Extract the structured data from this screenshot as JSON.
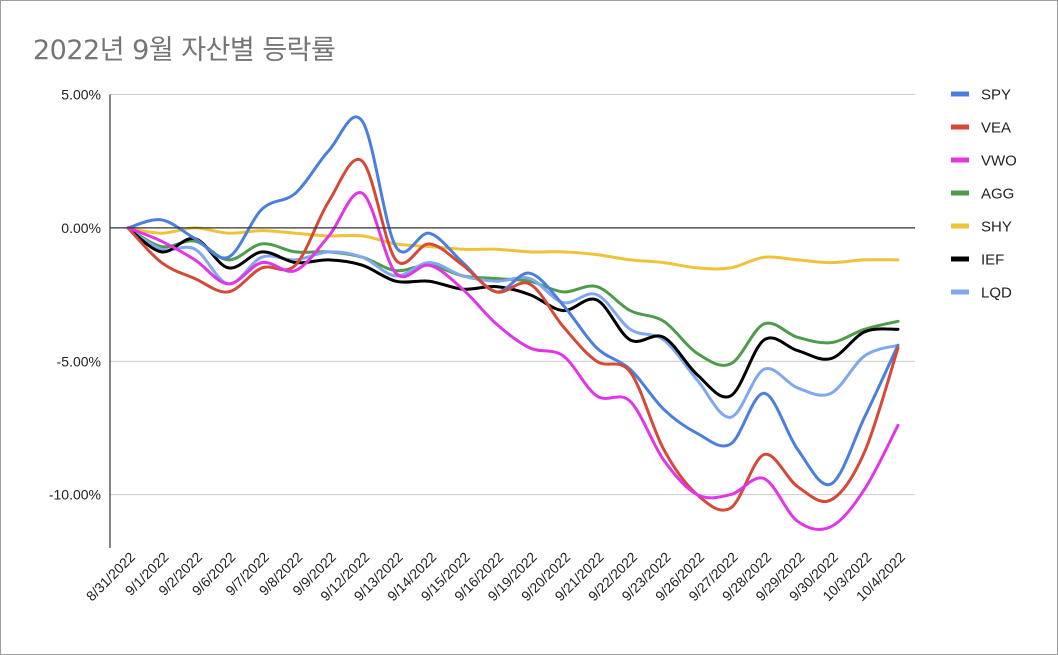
{
  "chart_data": {
    "type": "line",
    "title": "2022년 9월 자산별 등락률",
    "xlabel": "",
    "ylabel": "",
    "ylim": [
      -0.12,
      0.05
    ],
    "yticks": [
      {
        "value": 0.05,
        "label": "5.00%"
      },
      {
        "value": 0.0,
        "label": "0.00%"
      },
      {
        "value": -0.05,
        "label": "-5.00%"
      },
      {
        "value": -0.1,
        "label": "-10.00%"
      }
    ],
    "grid": true,
    "legend": "right",
    "x": [
      "8/31/2022",
      "9/1/2022",
      "9/2/2022",
      "9/6/2022",
      "9/7/2022",
      "9/8/2022",
      "9/9/2022",
      "9/12/2022",
      "9/13/2022",
      "9/14/2022",
      "9/15/2022",
      "9/16/2022",
      "9/19/2022",
      "9/20/2022",
      "9/21/2022",
      "9/22/2022",
      "9/23/2022",
      "9/26/2022",
      "9/27/2022",
      "9/28/2022",
      "9/29/2022",
      "9/30/2022",
      "10/3/2022",
      "10/4/2022"
    ],
    "series": [
      {
        "name": "SPY",
        "color": "#4a7fe0",
        "values": [
          0,
          0.003,
          -0.004,
          -0.011,
          0.007,
          0.013,
          0.029,
          0.04,
          -0.007,
          -0.002,
          -0.013,
          -0.024,
          -0.017,
          -0.029,
          -0.045,
          -0.053,
          -0.068,
          -0.077,
          -0.081,
          -0.062,
          -0.083,
          -0.096,
          -0.071,
          -0.044
        ]
      },
      {
        "name": "VEA",
        "color": "#d64937",
        "values": [
          0,
          -0.013,
          -0.019,
          -0.024,
          -0.015,
          -0.014,
          0.01,
          0.025,
          -0.012,
          -0.006,
          -0.014,
          -0.024,
          -0.021,
          -0.037,
          -0.05,
          -0.054,
          -0.083,
          -0.1,
          -0.105,
          -0.085,
          -0.097,
          -0.102,
          -0.084,
          -0.045
        ]
      },
      {
        "name": "VWO",
        "color": "#e335e8",
        "values": [
          0,
          -0.005,
          -0.012,
          -0.021,
          -0.013,
          -0.016,
          -0.003,
          0.013,
          -0.017,
          -0.014,
          -0.023,
          -0.036,
          -0.045,
          -0.048,
          -0.063,
          -0.065,
          -0.087,
          -0.1,
          -0.1,
          -0.094,
          -0.11,
          -0.112,
          -0.098,
          -0.074
        ]
      },
      {
        "name": "AGG",
        "color": "#4e9c4a",
        "values": [
          0,
          -0.007,
          -0.005,
          -0.012,
          -0.006,
          -0.009,
          -0.009,
          -0.011,
          -0.016,
          -0.014,
          -0.018,
          -0.019,
          -0.02,
          -0.024,
          -0.022,
          -0.031,
          -0.035,
          -0.047,
          -0.051,
          -0.036,
          -0.041,
          -0.043,
          -0.038,
          -0.035
        ]
      },
      {
        "name": "SHY",
        "color": "#f0c239",
        "values": [
          0,
          -0.002,
          0.0,
          -0.002,
          -0.001,
          -0.002,
          -0.003,
          -0.003,
          -0.006,
          -0.007,
          -0.008,
          -0.008,
          -0.009,
          -0.009,
          -0.01,
          -0.012,
          -0.013,
          -0.015,
          -0.015,
          -0.011,
          -0.012,
          -0.013,
          -0.012,
          -0.012
        ]
      },
      {
        "name": "IEF",
        "color": "#000000",
        "values": [
          0,
          -0.009,
          -0.004,
          -0.015,
          -0.009,
          -0.013,
          -0.012,
          -0.014,
          -0.02,
          -0.02,
          -0.023,
          -0.022,
          -0.025,
          -0.031,
          -0.027,
          -0.042,
          -0.041,
          -0.055,
          -0.063,
          -0.042,
          -0.046,
          -0.049,
          -0.039,
          -0.038
        ]
      },
      {
        "name": "LQD",
        "color": "#7fa8ef",
        "values": [
          0,
          -0.008,
          -0.008,
          -0.021,
          -0.011,
          -0.012,
          -0.009,
          -0.011,
          -0.018,
          -0.013,
          -0.018,
          -0.02,
          -0.019,
          -0.028,
          -0.025,
          -0.038,
          -0.042,
          -0.057,
          -0.071,
          -0.053,
          -0.06,
          -0.062,
          -0.048,
          -0.044
        ]
      }
    ]
  }
}
